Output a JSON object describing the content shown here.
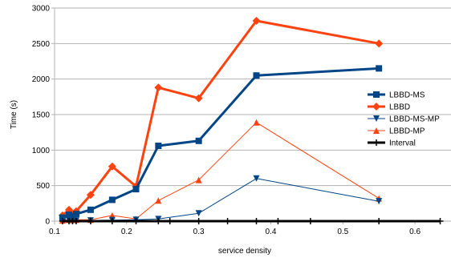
{
  "chart_data": {
    "type": "line",
    "xlabel": "service density",
    "ylabel": "Time (s)",
    "xlim": [
      0.1,
      0.65
    ],
    "ylim": [
      0,
      3000
    ],
    "x_ticks": [
      "0.1",
      "0.2",
      "0.3",
      "0.4",
      "0.5",
      "0.6"
    ],
    "y_ticks": [
      "0",
      "500",
      "1000",
      "1500",
      "2000",
      "2500",
      "3000"
    ],
    "grid": "horizontal",
    "legend_position": "right",
    "series": [
      {
        "name": "LBBD-MS",
        "color": "#004586",
        "marker": "square",
        "line_width": 3,
        "points": [
          [
            0.111,
            50
          ],
          [
            0.12,
            90
          ],
          [
            0.125,
            70
          ],
          [
            0.13,
            100
          ],
          [
            0.15,
            160
          ],
          [
            0.18,
            300
          ],
          [
            0.213,
            450
          ],
          [
            0.244,
            1060
          ],
          [
            0.3,
            1130
          ],
          [
            0.38,
            2050
          ],
          [
            0.55,
            2150
          ]
        ]
      },
      {
        "name": "LBBD",
        "color": "#ff420e",
        "marker": "diamond",
        "line_width": 3,
        "points": [
          [
            0.111,
            80
          ],
          [
            0.12,
            160
          ],
          [
            0.125,
            100
          ],
          [
            0.13,
            140
          ],
          [
            0.15,
            370
          ],
          [
            0.18,
            770
          ],
          [
            0.213,
            490
          ],
          [
            0.244,
            1880
          ],
          [
            0.3,
            1730
          ],
          [
            0.38,
            2820
          ],
          [
            0.55,
            2500
          ]
        ]
      },
      {
        "name": "LBBD-MS-MP",
        "color": "#004586",
        "marker": "triangle-down",
        "line_width": 1,
        "points": [
          [
            0.111,
            5
          ],
          [
            0.12,
            10
          ],
          [
            0.125,
            5
          ],
          [
            0.13,
            8
          ],
          [
            0.15,
            10
          ],
          [
            0.18,
            15
          ],
          [
            0.213,
            20
          ],
          [
            0.244,
            30
          ],
          [
            0.3,
            110
          ],
          [
            0.38,
            600
          ],
          [
            0.55,
            280
          ]
        ]
      },
      {
        "name": "LBBD-MP",
        "color": "#ff420e",
        "marker": "triangle-up",
        "line_width": 1,
        "points": [
          [
            0.111,
            10
          ],
          [
            0.12,
            20
          ],
          [
            0.125,
            15
          ],
          [
            0.13,
            20
          ],
          [
            0.15,
            20
          ],
          [
            0.18,
            80
          ],
          [
            0.213,
            30
          ],
          [
            0.244,
            290
          ],
          [
            0.3,
            580
          ],
          [
            0.38,
            1390
          ],
          [
            0.55,
            320
          ]
        ]
      },
      {
        "name": "Interval",
        "color": "#000000",
        "marker": "plus",
        "line_width": 3,
        "points": [
          [
            0.111,
            0
          ],
          [
            0.12,
            0
          ],
          [
            0.125,
            0
          ],
          [
            0.13,
            0
          ],
          [
            0.15,
            0
          ],
          [
            0.18,
            0
          ],
          [
            0.213,
            0
          ],
          [
            0.244,
            0
          ],
          [
            0.26,
            0
          ],
          [
            0.3,
            0
          ],
          [
            0.34,
            0
          ],
          [
            0.38,
            0
          ],
          [
            0.41,
            0
          ],
          [
            0.455,
            0
          ],
          [
            0.55,
            0
          ],
          [
            0.635,
            0
          ]
        ]
      }
    ]
  }
}
